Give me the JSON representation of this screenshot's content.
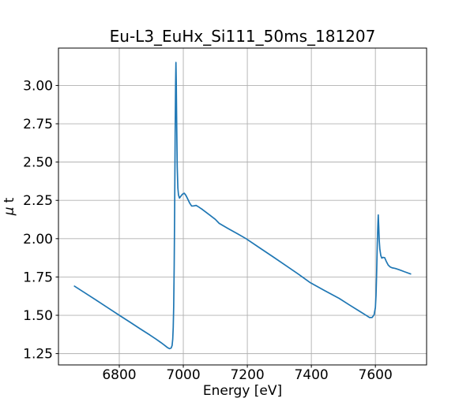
{
  "figure": {
    "background": "#ffffff"
  },
  "chart_data": {
    "type": "line",
    "title": "Eu-L3_EuHx_Si111_50ms_181207",
    "xlabel": "Energy [eV]",
    "ylabel": "μ t",
    "ylabel_mu": "μ",
    "ylabel_t": "t",
    "xlim": [
      6610,
      7760
    ],
    "ylim": [
      1.176,
      3.244
    ],
    "x_ticks": [
      6800,
      7000,
      7200,
      7400,
      7600
    ],
    "x_tick_labels": [
      "6800",
      "7000",
      "7200",
      "7400",
      "7600"
    ],
    "y_ticks": [
      1.25,
      1.5,
      1.75,
      2.0,
      2.25,
      2.5,
      2.75,
      3.0
    ],
    "y_tick_labels": [
      "1.25",
      "1.50",
      "1.75",
      "2.00",
      "2.25",
      "2.50",
      "2.75",
      "3.00"
    ],
    "grid": true,
    "grid_color": "#b0b0b0",
    "frame_color": "#000000",
    "line_color": "#1f77b4",
    "line_width": 1.7,
    "legend": "none",
    "series": [
      {
        "name": "mu_t_absorption",
        "points": [
          [
            6660,
            1.69
          ],
          [
            6695,
            1.643
          ],
          [
            6730,
            1.596
          ],
          [
            6765,
            1.548
          ],
          [
            6800,
            1.5
          ],
          [
            6835,
            1.453
          ],
          [
            6865,
            1.412
          ],
          [
            6895,
            1.372
          ],
          [
            6915,
            1.344
          ],
          [
            6930,
            1.322
          ],
          [
            6941,
            1.305
          ],
          [
            6950,
            1.29
          ],
          [
            6957,
            1.282
          ],
          [
            6962,
            1.286
          ],
          [
            6965,
            1.303
          ],
          [
            6967,
            1.345
          ],
          [
            6968.5,
            1.42
          ],
          [
            6970,
            1.56
          ],
          [
            6971.5,
            1.82
          ],
          [
            6973,
            2.2
          ],
          [
            6974.5,
            2.67
          ],
          [
            6976,
            3.02
          ],
          [
            6977,
            3.15
          ],
          [
            6978,
            3.02
          ],
          [
            6979.5,
            2.72
          ],
          [
            6981,
            2.47
          ],
          [
            6983,
            2.33
          ],
          [
            6985,
            2.285
          ],
          [
            6988,
            2.265
          ],
          [
            6992,
            2.276
          ],
          [
            6997,
            2.29
          ],
          [
            7003,
            2.297
          ],
          [
            7008,
            2.283
          ],
          [
            7014,
            2.258
          ],
          [
            7020,
            2.232
          ],
          [
            7026,
            2.213
          ],
          [
            7033,
            2.214
          ],
          [
            7040,
            2.217
          ],
          [
            7048,
            2.207
          ],
          [
            7060,
            2.19
          ],
          [
            7080,
            2.158
          ],
          [
            7100,
            2.126
          ],
          [
            7112,
            2.1
          ],
          [
            7140,
            2.066
          ],
          [
            7170,
            2.031
          ],
          [
            7196,
            2.0
          ],
          [
            7240,
            1.938
          ],
          [
            7280,
            1.882
          ],
          [
            7320,
            1.825
          ],
          [
            7360,
            1.768
          ],
          [
            7395,
            1.715
          ],
          [
            7440,
            1.663
          ],
          [
            7487,
            1.61
          ],
          [
            7520,
            1.566
          ],
          [
            7550,
            1.527
          ],
          [
            7570,
            1.501
          ],
          [
            7582,
            1.485
          ],
          [
            7590,
            1.486
          ],
          [
            7596,
            1.503
          ],
          [
            7600,
            1.55
          ],
          [
            7602,
            1.63
          ],
          [
            7604,
            1.78
          ],
          [
            7606,
            1.97
          ],
          [
            7608,
            2.1
          ],
          [
            7609,
            2.155
          ],
          [
            7610.5,
            2.08
          ],
          [
            7612,
            1.99
          ],
          [
            7614,
            1.93
          ],
          [
            7617,
            1.89
          ],
          [
            7620,
            1.873
          ],
          [
            7624,
            1.878
          ],
          [
            7629,
            1.876
          ],
          [
            7634,
            1.852
          ],
          [
            7640,
            1.828
          ],
          [
            7646,
            1.816
          ],
          [
            7652,
            1.81
          ],
          [
            7662,
            1.806
          ],
          [
            7675,
            1.797
          ],
          [
            7690,
            1.785
          ],
          [
            7710,
            1.77
          ]
        ]
      }
    ]
  }
}
